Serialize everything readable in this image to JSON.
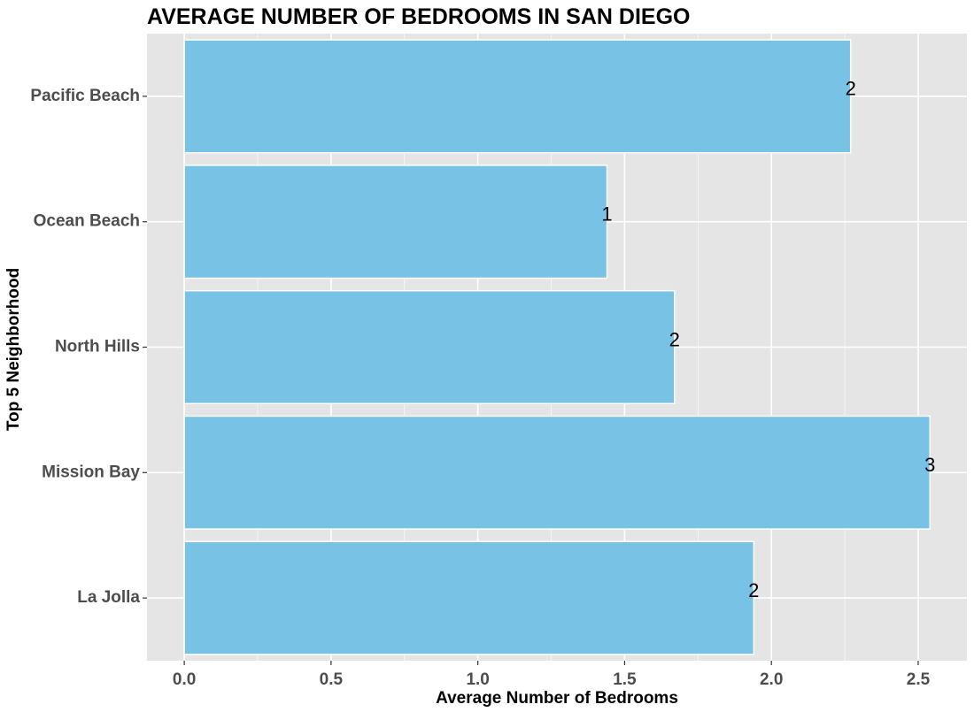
{
  "chart_data": {
    "type": "bar",
    "orientation": "horizontal",
    "title": "AVERAGE NUMBER OF BEDROOMS IN SAN DIEGO",
    "xlabel": "Average Number of Bedrooms",
    "ylabel": "Top 5 Neighborhood",
    "categories": [
      "La Jolla",
      "Mission Bay",
      "North Hills",
      "Ocean Beach",
      "Pacific Beach"
    ],
    "values": [
      1.94,
      2.54,
      1.67,
      1.44,
      2.27
    ],
    "data_labels": [
      "2",
      "3",
      "2",
      "1",
      "2"
    ],
    "x_ticks": [
      "0.0",
      "0.5",
      "1.0",
      "1.5",
      "2.0",
      "2.5"
    ],
    "xlim": [
      -0.127,
      2.666
    ],
    "grid": true,
    "colors": {
      "bar_fill": "#78c2e5",
      "bar_stroke": "#ffffff",
      "panel_bg": "#e5e5e5",
      "grid": "#ffffff"
    }
  }
}
